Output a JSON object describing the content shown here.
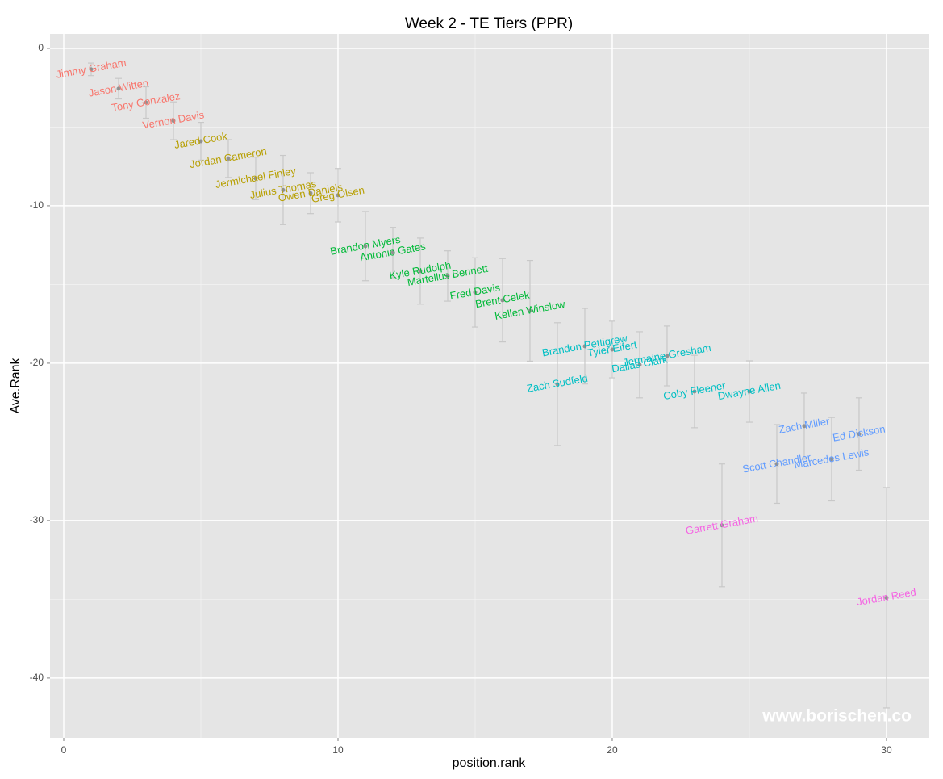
{
  "chart_data": {
    "type": "scatter",
    "title": "Week 2 - TE Tiers (PPR)",
    "x_label": "position.rank",
    "y_label": "Ave.Rank",
    "annotation": "www.borischen.co",
    "xlim": [
      -0.5,
      31.56
    ],
    "ylim": [
      -43.8,
      0.92
    ],
    "xticks": [
      0,
      10,
      20,
      30
    ],
    "yticks": [
      0,
      -10,
      -20,
      -30,
      -40
    ],
    "x_minor_grid": [
      5,
      15,
      25
    ],
    "y_minor_grid": [
      -5,
      -15,
      -25,
      -35
    ],
    "grid": true,
    "series": [
      {
        "color": "#F8766D",
        "x": [
          1,
          2,
          3,
          4
        ],
        "values": [
          -1.33,
          -2.56,
          -3.44,
          -4.6
        ],
        "errors": [
          0.4,
          0.65,
          1.0,
          1.2
        ],
        "labels": [
          "Jimmy Graham",
          "Jason Witten",
          "Tony Gonzalez",
          "Vernon Davis"
        ]
      },
      {
        "color": "#B79F00",
        "x": [
          5,
          6,
          7,
          8,
          9,
          10
        ],
        "values": [
          -5.9,
          -7.0,
          -8.26,
          -9.0,
          -9.2,
          -9.33
        ],
        "errors": [
          1.2,
          1.2,
          1.35,
          2.2,
          1.3,
          1.7
        ],
        "labels": [
          "Jared Cook",
          "Jordan Cameron",
          "Jermichael Finley",
          "Julius Thomas",
          "Owen Daniels",
          "Greg Olsen"
        ]
      },
      {
        "color": "#00BA38",
        "x": [
          11,
          12,
          13,
          14,
          15,
          16,
          17
        ],
        "values": [
          -12.56,
          -12.97,
          -14.15,
          -14.46,
          -15.5,
          -16.0,
          -16.67
        ],
        "errors": [
          2.2,
          1.6,
          2.1,
          1.6,
          2.2,
          2.65,
          3.2
        ],
        "labels": [
          "Brandon Myers",
          "Antonio Gates",
          "Kyle Rudolph",
          "Martellus Bennett",
          "Fred Davis",
          "Brent Celek",
          "Kellen Winslow"
        ]
      },
      {
        "color": "#00BFC4",
        "x": [
          18,
          19,
          20,
          21,
          22,
          23,
          25
        ],
        "values": [
          -21.33,
          -18.92,
          -19.13,
          -20.1,
          -19.54,
          -21.8,
          -21.8
        ],
        "errors": [
          3.9,
          2.4,
          1.8,
          2.1,
          1.9,
          2.3,
          1.95
        ],
        "labels": [
          "Zach Sudfeld",
          "Brandon Pettigrew",
          "Tyler Eifert",
          "Dallas Clark",
          "Jermaine Gresham",
          "Coby Fleener",
          "Dwayne Allen"
        ]
      },
      {
        "color": "#619CFF",
        "x": [
          26,
          27,
          28,
          29
        ],
        "values": [
          -26.4,
          -24.0,
          -26.1,
          -24.5
        ],
        "errors": [
          2.5,
          2.1,
          2.65,
          2.3
        ],
        "labels": [
          "Scott Chandler",
          "Zach Miller",
          "Marcedes Lewis",
          "Ed Dickson"
        ]
      },
      {
        "color": "#F564E3",
        "x": [
          24,
          30
        ],
        "values": [
          -30.3,
          -34.9
        ],
        "errors": [
          3.9,
          7.0
        ],
        "labels": [
          "Garrett Graham",
          "Jordan Reed"
        ]
      }
    ]
  }
}
